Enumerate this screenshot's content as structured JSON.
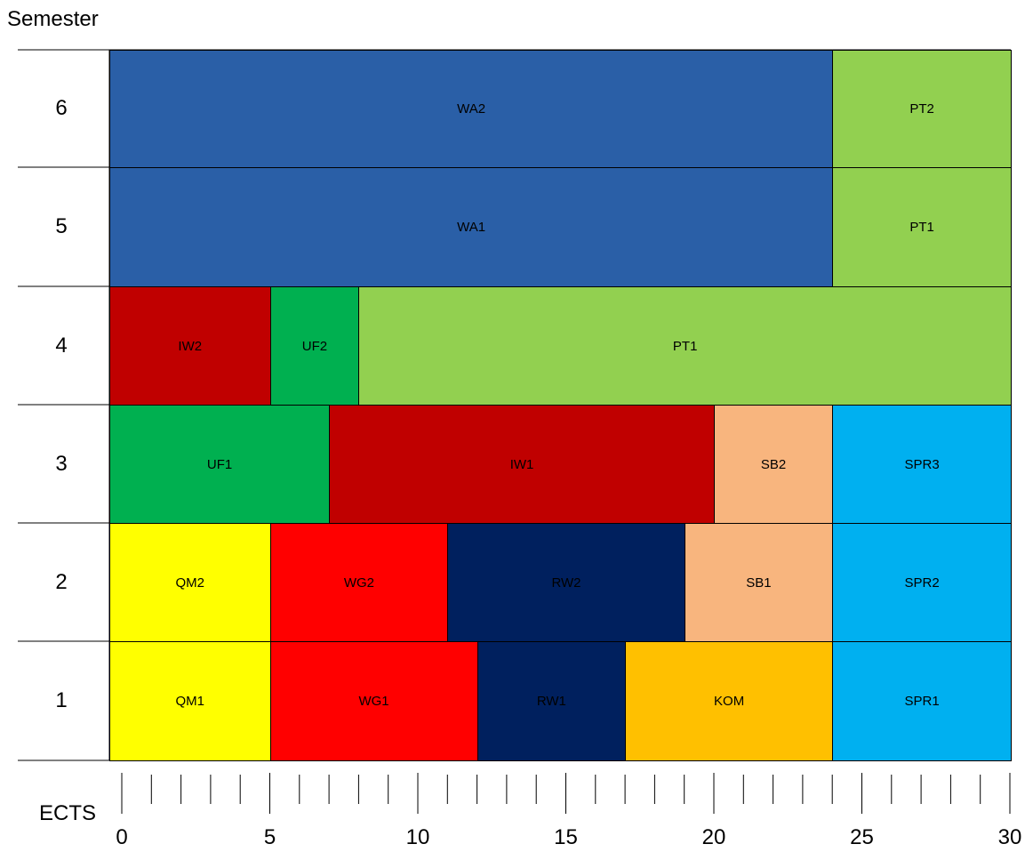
{
  "axes": {
    "y_title": "Semester",
    "x_title": "ECTS",
    "x_tick_labels": [
      "0",
      "5",
      "10",
      "15",
      "20",
      "25",
      "30"
    ],
    "x_min": 0,
    "x_max": 30,
    "minor_tick_step": 1
  },
  "semesters": [
    {
      "label": "6",
      "modules": [
        {
          "name": "WA2",
          "start": 0,
          "end": 24,
          "color": "#2a5fa7"
        },
        {
          "name": "PT2",
          "start": 24,
          "end": 30,
          "color": "#92d050"
        }
      ]
    },
    {
      "label": "5",
      "modules": [
        {
          "name": "WA1",
          "start": 0,
          "end": 24,
          "color": "#2a5fa7"
        },
        {
          "name": "PT1",
          "start": 24,
          "end": 30,
          "color": "#92d050"
        }
      ]
    },
    {
      "label": "4",
      "modules": [
        {
          "name": "IW2",
          "start": 0,
          "end": 5,
          "color": "#c00000"
        },
        {
          "name": "UF2",
          "start": 5,
          "end": 8,
          "color": "#00b050"
        },
        {
          "name": "PT1",
          "start": 8,
          "end": 30,
          "color": "#92d050"
        }
      ]
    },
    {
      "label": "3",
      "modules": [
        {
          "name": "UF1",
          "start": 0,
          "end": 7,
          "color": "#00b050"
        },
        {
          "name": "IW1",
          "start": 7,
          "end": 20,
          "color": "#c00000"
        },
        {
          "name": "SB2",
          "start": 20,
          "end": 24,
          "color": "#f8b57e"
        },
        {
          "name": "SPR3",
          "start": 24,
          "end": 30,
          "color": "#00b0f0"
        }
      ]
    },
    {
      "label": "2",
      "modules": [
        {
          "name": "QM2",
          "start": 0,
          "end": 5,
          "color": "#ffff00"
        },
        {
          "name": "WG2",
          "start": 5,
          "end": 11,
          "color": "#ff0000"
        },
        {
          "name": "RW2",
          "start": 11,
          "end": 19,
          "color": "#00205e"
        },
        {
          "name": "SB1",
          "start": 19,
          "end": 24,
          "color": "#f8b57e"
        },
        {
          "name": "SPR2",
          "start": 24,
          "end": 30,
          "color": "#00b0f0"
        }
      ]
    },
    {
      "label": "1",
      "modules": [
        {
          "name": "QM1",
          "start": 0,
          "end": 5,
          "color": "#ffff00"
        },
        {
          "name": "WG1",
          "start": 5,
          "end": 12,
          "color": "#ff0000"
        },
        {
          "name": "RW1",
          "start": 12,
          "end": 17,
          "color": "#00205e"
        },
        {
          "name": "KOM",
          "start": 17,
          "end": 24,
          "color": "#ffc000"
        },
        {
          "name": "SPR1",
          "start": 24,
          "end": 30,
          "color": "#00b0f0"
        }
      ]
    }
  ]
}
